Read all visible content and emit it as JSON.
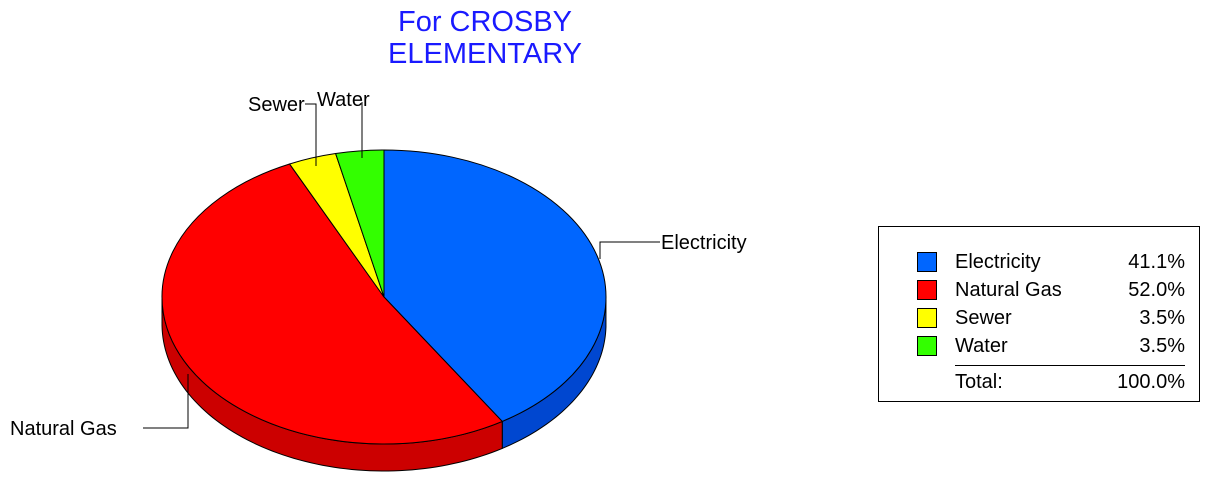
{
  "chart_data": {
    "type": "pie",
    "title": "For CROSBY ELEMENTARY",
    "title_lines": [
      "For CROSBY",
      "ELEMENTARY"
    ],
    "slices": [
      {
        "label": "Electricity",
        "value": 41.1,
        "value_label": "41.1%",
        "color": "#0066ff",
        "side_color": "#0047d0"
      },
      {
        "label": "Natural Gas",
        "value": 52.0,
        "value_label": "52.0%",
        "color": "#ff0000",
        "side_color": "#cc0000"
      },
      {
        "label": "Sewer",
        "value": 3.5,
        "value_label": "3.5%",
        "color": "#ffff00",
        "side_color": "#cccc00"
      },
      {
        "label": "Water",
        "value": 3.5,
        "value_label": "3.5%",
        "color": "#33ff00",
        "side_color": "#22cc00"
      }
    ],
    "total_label": "Total:",
    "total_value": "100.0%",
    "legend_position": "right"
  }
}
